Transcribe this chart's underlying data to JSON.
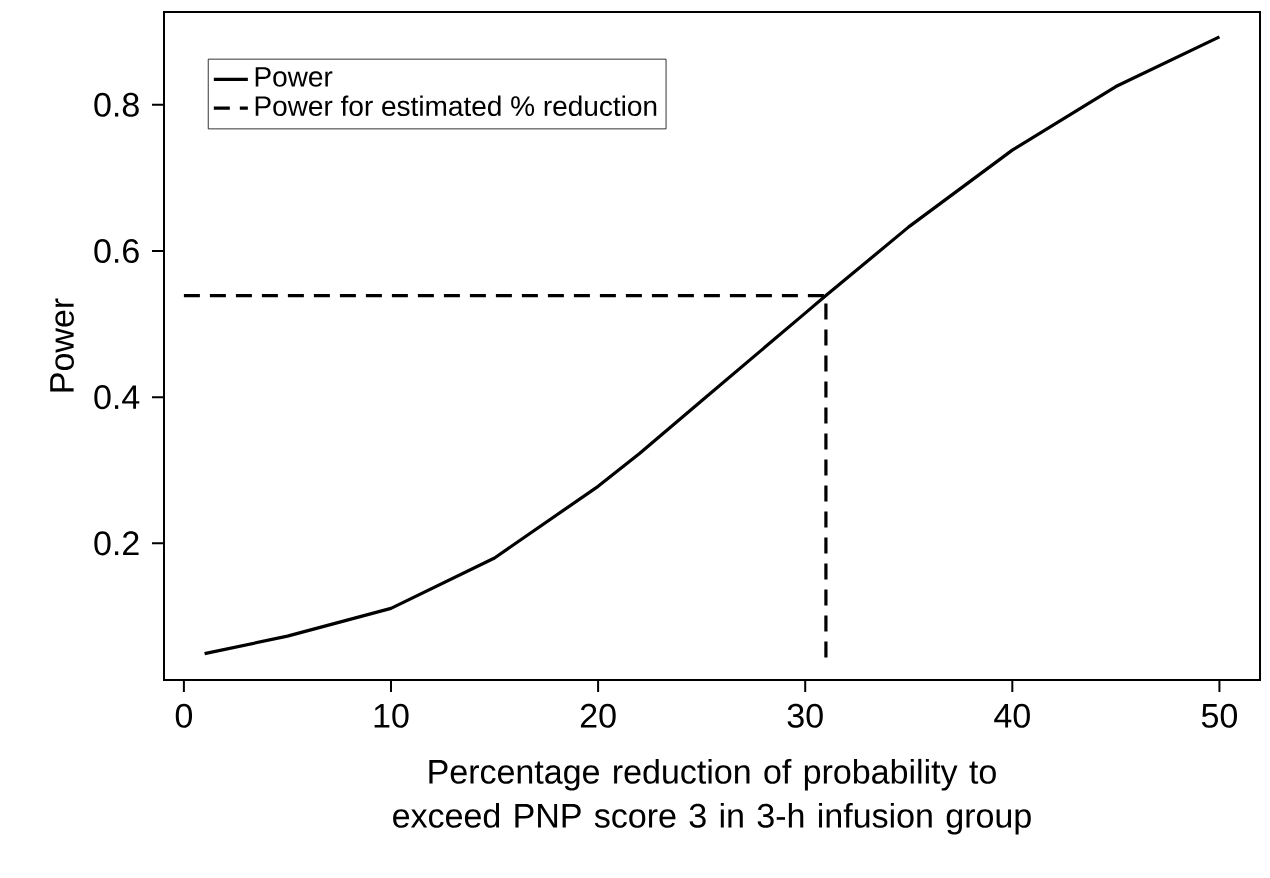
{
  "chart_data": {
    "type": "line",
    "xlabel": "Percentage reduction of probability to exceed PNP score 3 in 3-h infusion group",
    "ylabel": "Power",
    "xlim": [
      -0.96,
      51.96
    ],
    "ylim": [
      0.013,
      0.927
    ],
    "xticks": [
      0,
      10,
      20,
      30,
      40,
      50
    ],
    "yticks": [
      0.2,
      0.4,
      0.6,
      0.8
    ],
    "legend": "top left",
    "series": [
      {
        "name": "Power",
        "color": "#000000",
        "line_style": "solid",
        "x": [
          1,
          5,
          10,
          15,
          20,
          22,
          25,
          30,
          31,
          35,
          40,
          45,
          50
        ],
        "values": [
          0.049,
          0.073,
          0.111,
          0.18,
          0.278,
          0.323,
          0.395,
          0.515,
          0.539,
          0.633,
          0.738,
          0.825,
          0.893
        ]
      },
      {
        "name": "Power for estimated % reduction",
        "color": "#000000",
        "line_style": "dashed",
        "x": [
          0,
          31,
          31
        ],
        "values": [
          0.539,
          0.539,
          0.04
        ]
      }
    ]
  }
}
